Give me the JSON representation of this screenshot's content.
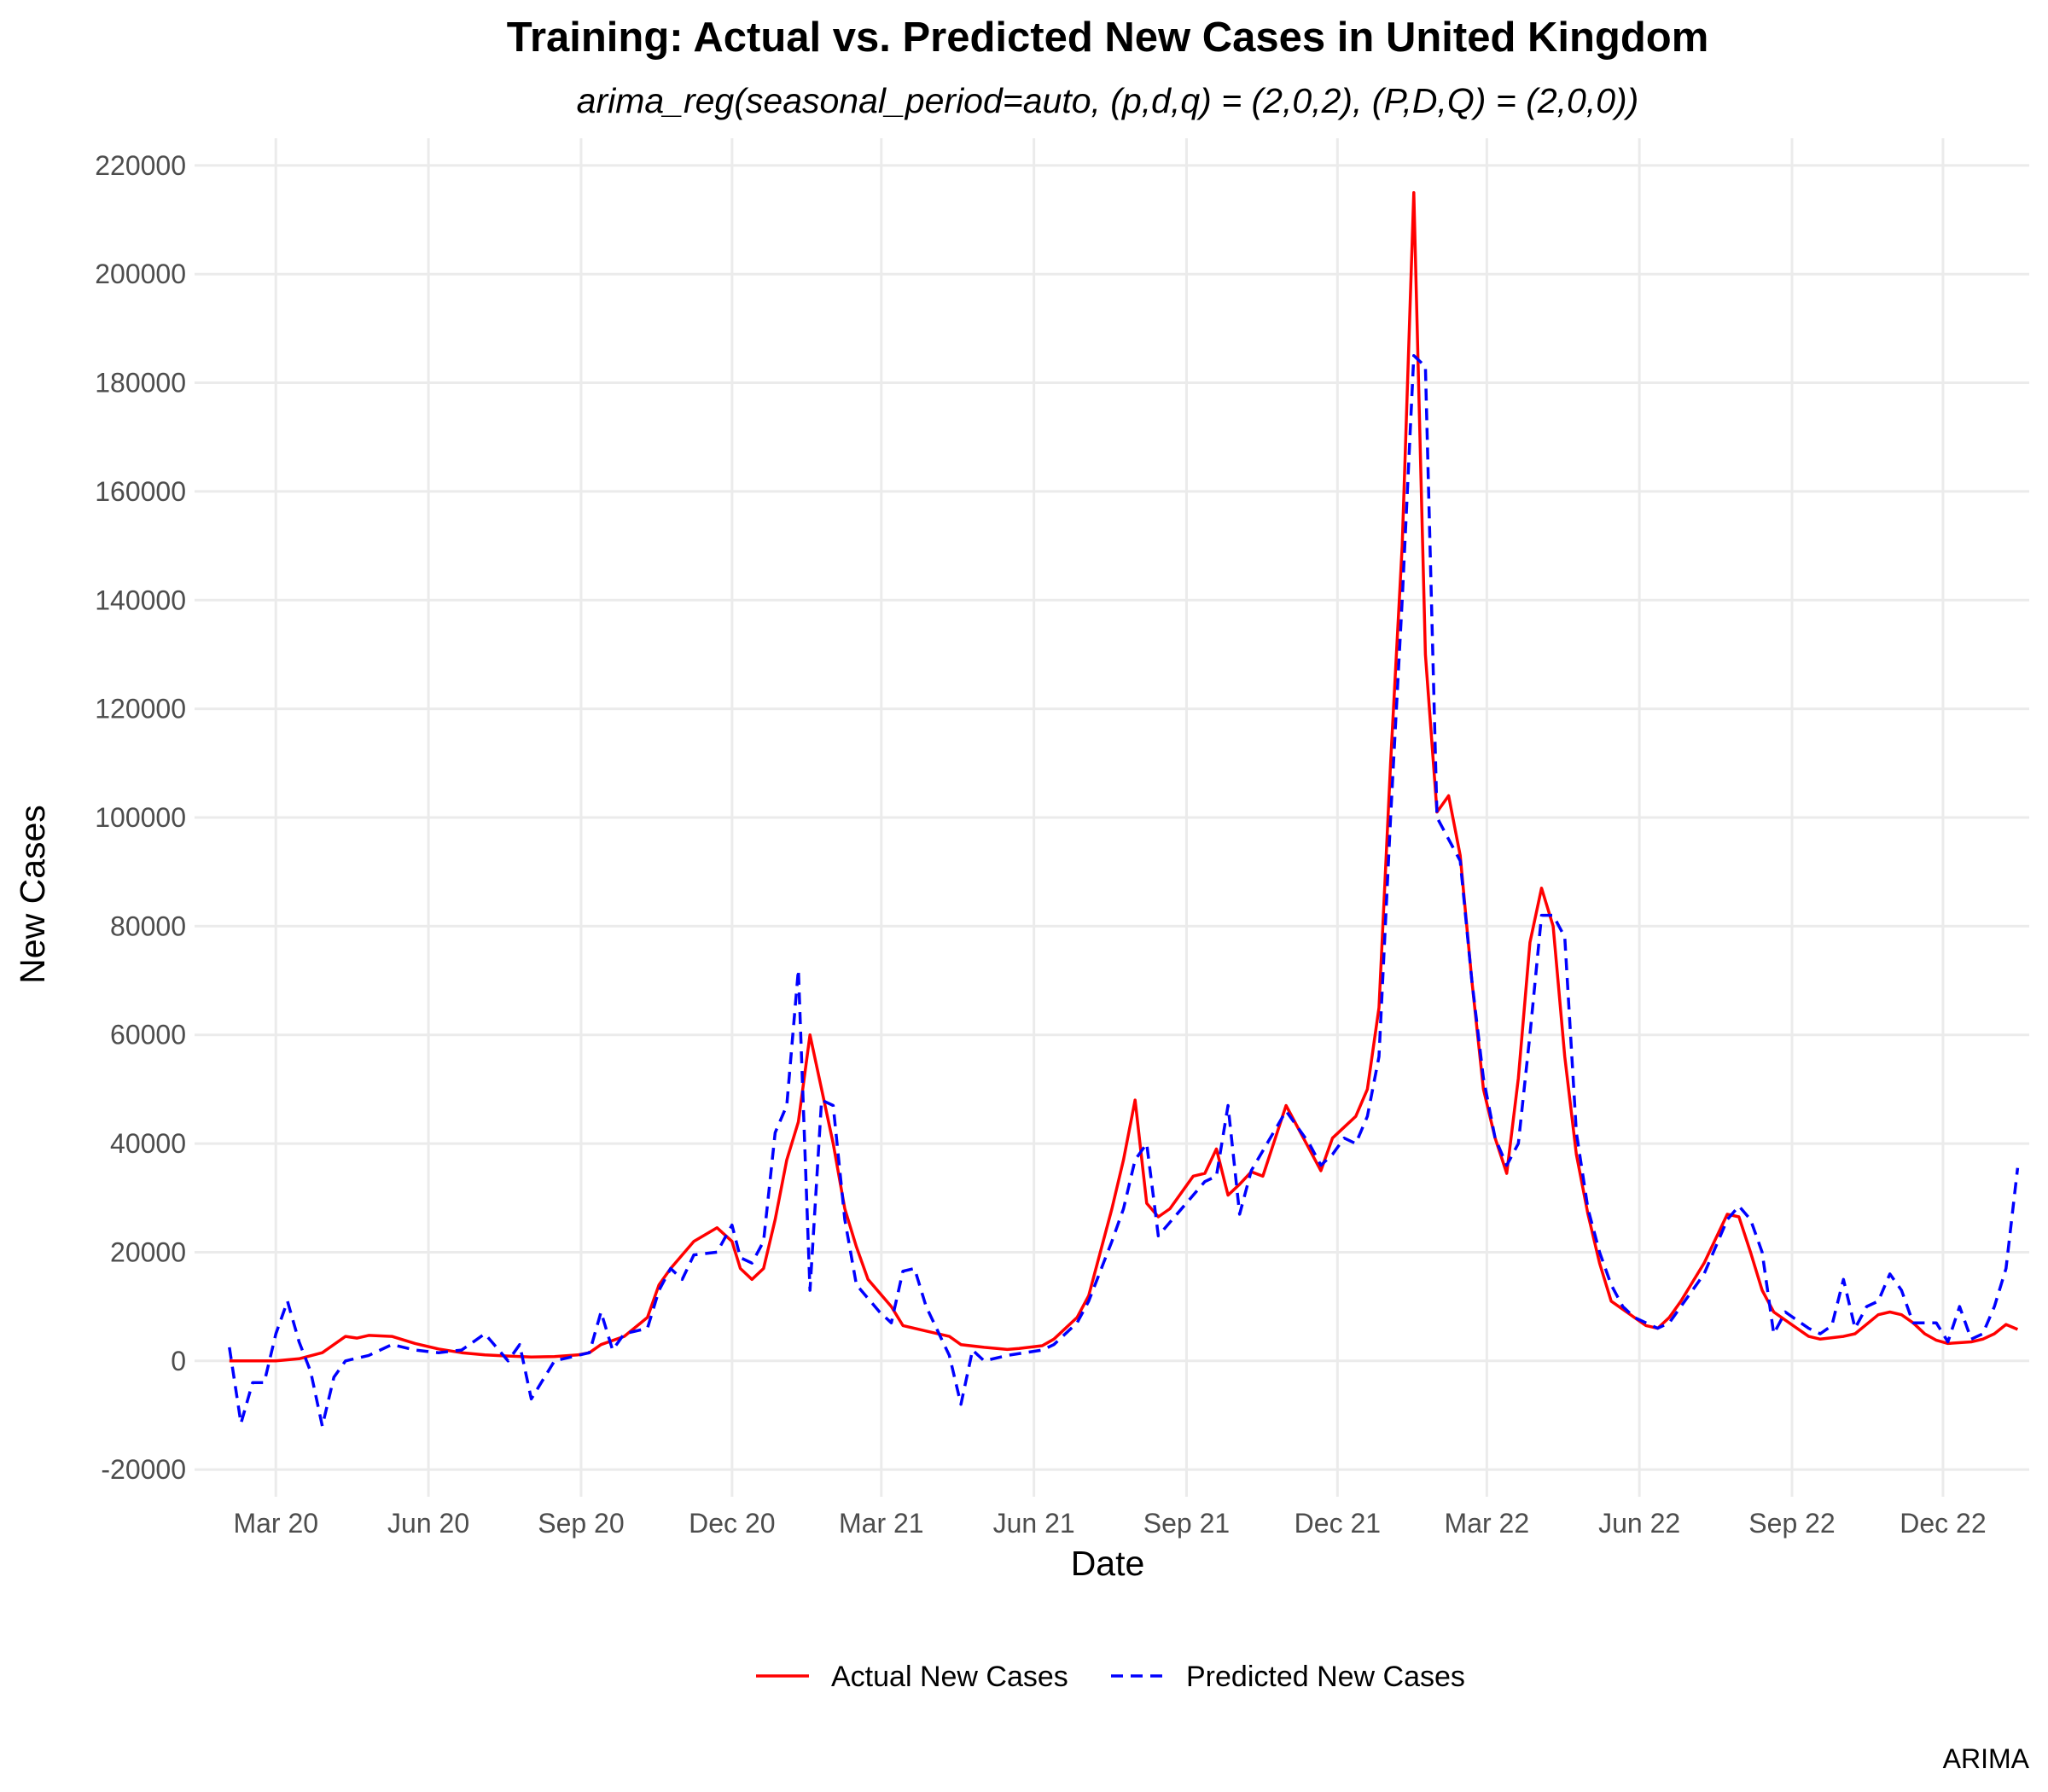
{
  "chart_data": {
    "type": "line",
    "title": "Training: Actual vs. Predicted New Cases in United Kingdom",
    "subtitle": "arima_reg(seasonal_period=auto, (p,d,q) = (2,0,2), (P,D,Q) = (2,0,0))",
    "xlabel": "Date",
    "ylabel": "New Cases",
    "caption": "ARIMA",
    "x_range": [
      "2020-01-12",
      "2023-01-22"
    ],
    "ylim": [
      -25000,
      225000
    ],
    "x_ticks": [
      {
        "date": "2020-03-01",
        "label": "Mar 20"
      },
      {
        "date": "2020-06-01",
        "label": "Jun 20"
      },
      {
        "date": "2020-09-01",
        "label": "Sep 20"
      },
      {
        "date": "2020-12-01",
        "label": "Dec 20"
      },
      {
        "date": "2021-03-01",
        "label": "Mar 21"
      },
      {
        "date": "2021-06-01",
        "label": "Jun 21"
      },
      {
        "date": "2021-09-01",
        "label": "Sep 21"
      },
      {
        "date": "2021-12-01",
        "label": "Dec 21"
      },
      {
        "date": "2022-03-01",
        "label": "Mar 22"
      },
      {
        "date": "2022-06-01",
        "label": "Jun 22"
      },
      {
        "date": "2022-09-01",
        "label": "Sep 22"
      },
      {
        "date": "2022-12-01",
        "label": "Dec 22"
      }
    ],
    "y_ticks": [
      -20000,
      0,
      20000,
      40000,
      60000,
      80000,
      100000,
      120000,
      140000,
      160000,
      180000,
      200000,
      220000
    ],
    "grid": true,
    "legend": {
      "position": "bottom"
    },
    "series": [
      {
        "name": "Actual New Cases",
        "color": "#ff0000",
        "dash": "solid",
        "points": [
          [
            "2020-02-02",
            0
          ],
          [
            "2020-02-16",
            0
          ],
          [
            "2020-03-01",
            0
          ],
          [
            "2020-03-15",
            400
          ],
          [
            "2020-03-29",
            1500
          ],
          [
            "2020-04-12",
            4500
          ],
          [
            "2020-04-19",
            4200
          ],
          [
            "2020-04-26",
            4700
          ],
          [
            "2020-05-10",
            4500
          ],
          [
            "2020-05-24",
            3200
          ],
          [
            "2020-06-07",
            2200
          ],
          [
            "2020-06-21",
            1500
          ],
          [
            "2020-07-05",
            1100
          ],
          [
            "2020-07-19",
            900
          ],
          [
            "2020-08-02",
            700
          ],
          [
            "2020-08-16",
            800
          ],
          [
            "2020-08-30",
            1100
          ],
          [
            "2020-09-06",
            1500
          ],
          [
            "2020-09-13",
            3000
          ],
          [
            "2020-09-27",
            4500
          ],
          [
            "2020-10-11",
            8000
          ],
          [
            "2020-10-18",
            14000
          ],
          [
            "2020-10-25",
            17000
          ],
          [
            "2020-11-08",
            22000
          ],
          [
            "2020-11-22",
            24500
          ],
          [
            "2020-12-01",
            22000
          ],
          [
            "2020-12-06",
            17000
          ],
          [
            "2020-12-13",
            15000
          ],
          [
            "2020-12-20",
            17000
          ],
          [
            "2020-12-27",
            26000
          ],
          [
            "2021-01-03",
            37000
          ],
          [
            "2021-01-10",
            44000
          ],
          [
            "2021-01-17",
            60000
          ],
          [
            "2021-01-24",
            50000
          ],
          [
            "2021-01-31",
            40000
          ],
          [
            "2021-02-07",
            28000
          ],
          [
            "2021-02-14",
            21000
          ],
          [
            "2021-02-21",
            15000
          ],
          [
            "2021-03-07",
            10000
          ],
          [
            "2021-03-14",
            6500
          ],
          [
            "2021-03-28",
            5500
          ],
          [
            "2021-04-11",
            4500
          ],
          [
            "2021-04-18",
            3000
          ],
          [
            "2021-05-02",
            2500
          ],
          [
            "2021-05-16",
            2100
          ],
          [
            "2021-05-23",
            2300
          ],
          [
            "2021-06-06",
            2800
          ],
          [
            "2021-06-13",
            4000
          ],
          [
            "2021-06-27",
            8000
          ],
          [
            "2021-07-04",
            12000
          ],
          [
            "2021-07-18",
            28000
          ],
          [
            "2021-07-25",
            37000
          ],
          [
            "2021-08-01",
            48000
          ],
          [
            "2021-08-08",
            29000
          ],
          [
            "2021-08-15",
            26500
          ],
          [
            "2021-08-22",
            28000
          ],
          [
            "2021-09-05",
            34000
          ],
          [
            "2021-09-12",
            34500
          ],
          [
            "2021-09-19",
            39000
          ],
          [
            "2021-09-26",
            30500
          ],
          [
            "2021-10-03",
            32500
          ],
          [
            "2021-10-10",
            34800
          ],
          [
            "2021-10-17",
            34000
          ],
          [
            "2021-10-31",
            47000
          ],
          [
            "2021-11-07",
            43000
          ],
          [
            "2021-11-21",
            35000
          ],
          [
            "2021-11-28",
            41000
          ],
          [
            "2021-12-12",
            45000
          ],
          [
            "2021-12-19",
            50000
          ],
          [
            "2021-12-26",
            65000
          ],
          [
            "2022-01-02",
            110000
          ],
          [
            "2022-01-09",
            150000
          ],
          [
            "2022-01-16",
            215000
          ],
          [
            "2022-01-23",
            130000
          ],
          [
            "2022-01-30",
            101000
          ],
          [
            "2022-02-06",
            104000
          ],
          [
            "2022-02-13",
            93000
          ],
          [
            "2022-02-20",
            70000
          ],
          [
            "2022-02-27",
            50000
          ],
          [
            "2022-03-06",
            41000
          ],
          [
            "2022-03-13",
            34500
          ],
          [
            "2022-03-20",
            52000
          ],
          [
            "2022-03-27",
            77000
          ],
          [
            "2022-04-03",
            87000
          ],
          [
            "2022-04-10",
            80000
          ],
          [
            "2022-04-17",
            56000
          ],
          [
            "2022-04-24",
            38000
          ],
          [
            "2022-05-01",
            27000
          ],
          [
            "2022-05-08",
            18000
          ],
          [
            "2022-05-15",
            11000
          ],
          [
            "2022-05-29",
            8000
          ],
          [
            "2022-06-05",
            6500
          ],
          [
            "2022-06-12",
            6000
          ],
          [
            "2022-06-19",
            8000
          ],
          [
            "2022-06-26",
            11000
          ],
          [
            "2022-07-03",
            14500
          ],
          [
            "2022-07-10",
            18000
          ],
          [
            "2022-07-24",
            27000
          ],
          [
            "2022-07-31",
            26500
          ],
          [
            "2022-08-07",
            20000
          ],
          [
            "2022-08-14",
            13000
          ],
          [
            "2022-08-21",
            9000
          ],
          [
            "2022-09-04",
            6000
          ],
          [
            "2022-09-11",
            4500
          ],
          [
            "2022-09-18",
            4000
          ],
          [
            "2022-10-02",
            4500
          ],
          [
            "2022-10-09",
            5000
          ],
          [
            "2022-10-23",
            8500
          ],
          [
            "2022-10-30",
            9000
          ],
          [
            "2022-11-06",
            8500
          ],
          [
            "2022-11-13",
            7000
          ],
          [
            "2022-11-20",
            5000
          ],
          [
            "2022-11-27",
            3800
          ],
          [
            "2022-12-04",
            3200
          ],
          [
            "2022-12-18",
            3500
          ],
          [
            "2022-12-25",
            4000
          ],
          [
            "2023-01-01",
            5000
          ],
          [
            "2023-01-08",
            6700
          ],
          [
            "2023-01-15",
            5800
          ]
        ]
      },
      {
        "name": "Predicted New Cases",
        "color": "#0000ff",
        "dash": "dashed",
        "points": [
          [
            "2020-02-02",
            2500
          ],
          [
            "2020-02-09",
            -11500
          ],
          [
            "2020-02-16",
            -4000
          ],
          [
            "2020-02-23",
            -4000
          ],
          [
            "2020-03-01",
            5000
          ],
          [
            "2020-03-08",
            11000
          ],
          [
            "2020-03-15",
            3500
          ],
          [
            "2020-03-22",
            -2000
          ],
          [
            "2020-03-29",
            -12000
          ],
          [
            "2020-04-05",
            -3000
          ],
          [
            "2020-04-12",
            0
          ],
          [
            "2020-04-26",
            1000
          ],
          [
            "2020-05-10",
            3000
          ],
          [
            "2020-05-24",
            2000
          ],
          [
            "2020-06-07",
            1500
          ],
          [
            "2020-06-21",
            2000
          ],
          [
            "2020-07-05",
            5000
          ],
          [
            "2020-07-19",
            0
          ],
          [
            "2020-07-26",
            3000
          ],
          [
            "2020-08-02",
            -7000
          ],
          [
            "2020-08-16",
            0
          ],
          [
            "2020-08-30",
            1000
          ],
          [
            "2020-09-06",
            1500
          ],
          [
            "2020-09-13",
            9000
          ],
          [
            "2020-09-20",
            2000
          ],
          [
            "2020-09-27",
            5000
          ],
          [
            "2020-10-11",
            6000
          ],
          [
            "2020-10-18",
            13000
          ],
          [
            "2020-10-25",
            17000
          ],
          [
            "2020-11-01",
            15000
          ],
          [
            "2020-11-08",
            19500
          ],
          [
            "2020-11-22",
            20000
          ],
          [
            "2020-12-01",
            25000
          ],
          [
            "2020-12-06",
            19000
          ],
          [
            "2020-12-13",
            18000
          ],
          [
            "2020-12-20",
            22000
          ],
          [
            "2020-12-27",
            42000
          ],
          [
            "2021-01-03",
            47000
          ],
          [
            "2021-01-10",
            72000
          ],
          [
            "2021-01-17",
            13000
          ],
          [
            "2021-01-24",
            48000
          ],
          [
            "2021-01-31",
            47000
          ],
          [
            "2021-02-07",
            26000
          ],
          [
            "2021-02-14",
            14000
          ],
          [
            "2021-02-28",
            9000
          ],
          [
            "2021-03-07",
            7000
          ],
          [
            "2021-03-14",
            16500
          ],
          [
            "2021-03-21",
            17000
          ],
          [
            "2021-03-28",
            10000
          ],
          [
            "2021-04-11",
            1000
          ],
          [
            "2021-04-18",
            -8000
          ],
          [
            "2021-04-25",
            2000
          ],
          [
            "2021-05-02",
            0
          ],
          [
            "2021-05-16",
            1000
          ],
          [
            "2021-06-06",
            2000
          ],
          [
            "2021-06-13",
            3000
          ],
          [
            "2021-06-27",
            7000
          ],
          [
            "2021-07-04",
            11000
          ],
          [
            "2021-07-18",
            22000
          ],
          [
            "2021-07-25",
            28000
          ],
          [
            "2021-08-01",
            37000
          ],
          [
            "2021-08-08",
            40000
          ],
          [
            "2021-08-15",
            23000
          ],
          [
            "2021-09-12",
            33000
          ],
          [
            "2021-09-19",
            34000
          ],
          [
            "2021-09-26",
            47000
          ],
          [
            "2021-10-03",
            27000
          ],
          [
            "2021-10-10",
            35000
          ],
          [
            "2021-10-31",
            46000
          ],
          [
            "2021-11-14",
            40000
          ],
          [
            "2021-11-21",
            36000
          ],
          [
            "2021-11-28",
            38000
          ],
          [
            "2021-12-05",
            41000
          ],
          [
            "2021-12-12",
            40000
          ],
          [
            "2021-12-19",
            45000
          ],
          [
            "2021-12-26",
            56000
          ],
          [
            "2022-01-02",
            100000
          ],
          [
            "2022-01-09",
            140000
          ],
          [
            "2022-01-16",
            185000
          ],
          [
            "2022-01-23",
            183000
          ],
          [
            "2022-01-30",
            100000
          ],
          [
            "2022-02-06",
            96000
          ],
          [
            "2022-02-13",
            92000
          ],
          [
            "2022-02-20",
            70000
          ],
          [
            "2022-02-27",
            52000
          ],
          [
            "2022-03-06",
            41000
          ],
          [
            "2022-03-13",
            36000
          ],
          [
            "2022-03-20",
            40000
          ],
          [
            "2022-03-27",
            60000
          ],
          [
            "2022-04-03",
            82000
          ],
          [
            "2022-04-10",
            82000
          ],
          [
            "2022-04-17",
            78000
          ],
          [
            "2022-04-24",
            42000
          ],
          [
            "2022-05-01",
            28000
          ],
          [
            "2022-05-08",
            20000
          ],
          [
            "2022-05-15",
            14000
          ],
          [
            "2022-05-22",
            10000
          ],
          [
            "2022-05-29",
            8000
          ],
          [
            "2022-06-05",
            7000
          ],
          [
            "2022-06-12",
            6000
          ],
          [
            "2022-06-19",
            7000
          ],
          [
            "2022-06-26",
            10000
          ],
          [
            "2022-07-03",
            13000
          ],
          [
            "2022-07-10",
            16000
          ],
          [
            "2022-07-24",
            26000
          ],
          [
            "2022-07-31",
            28500
          ],
          [
            "2022-08-07",
            26000
          ],
          [
            "2022-08-14",
            20000
          ],
          [
            "2022-08-21",
            5000
          ],
          [
            "2022-08-28",
            9000
          ],
          [
            "2022-09-11",
            6000
          ],
          [
            "2022-09-18",
            5000
          ],
          [
            "2022-09-25",
            6500
          ],
          [
            "2022-10-02",
            15000
          ],
          [
            "2022-10-09",
            6000
          ],
          [
            "2022-10-16",
            10000
          ],
          [
            "2022-10-23",
            11000
          ],
          [
            "2022-10-30",
            16000
          ],
          [
            "2022-11-06",
            13000
          ],
          [
            "2022-11-13",
            7000
          ],
          [
            "2022-11-27",
            7000
          ],
          [
            "2022-12-04",
            3500
          ],
          [
            "2022-12-11",
            10000
          ],
          [
            "2022-12-18",
            4000
          ],
          [
            "2022-12-25",
            5000
          ],
          [
            "2023-01-01",
            10000
          ],
          [
            "2023-01-08",
            17000
          ],
          [
            "2023-01-15",
            35500
          ]
        ]
      }
    ]
  }
}
